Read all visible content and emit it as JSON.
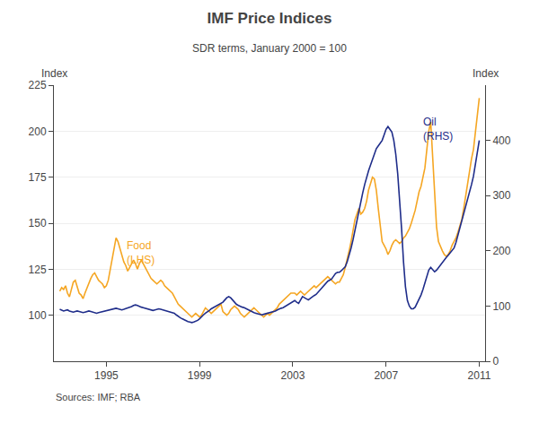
{
  "chart_data": {
    "type": "line",
    "title": "IMF Price Indices",
    "subtitle": "SDR terms, January 2000 = 100",
    "ylabel": "Index",
    "y2label": "Index",
    "source": "Sources: IMF; RBA",
    "grid": true,
    "xlim": [
      1992.75,
      2011.25
    ],
    "xticks": [
      1995,
      1999,
      2003,
      2007,
      2011
    ],
    "ylim": [
      75,
      225
    ],
    "yticks": [
      100,
      125,
      150,
      175,
      200,
      225
    ],
    "y2lim": [
      0,
      500
    ],
    "y2ticks": [
      0,
      100,
      200,
      300,
      400
    ],
    "annotations": [
      {
        "text": "Food\n(LHS)",
        "x": 1995.8,
        "y": 134,
        "color": "#F5A623"
      },
      {
        "text": "Oil\n(RHS)",
        "x": 2008.5,
        "y": 420,
        "axis": "y2",
        "color": "#1F2D8A"
      }
    ],
    "x": [
      1993.0,
      1993.083,
      1993.167,
      1993.25,
      1993.333,
      1993.417,
      1993.5,
      1993.583,
      1993.667,
      1993.75,
      1993.833,
      1993.917,
      1994.0,
      1994.083,
      1994.167,
      1994.25,
      1994.333,
      1994.417,
      1994.5,
      1994.583,
      1994.667,
      1994.75,
      1994.833,
      1994.917,
      1995.0,
      1995.083,
      1995.167,
      1995.25,
      1995.333,
      1995.417,
      1995.5,
      1995.583,
      1995.667,
      1995.75,
      1995.833,
      1995.917,
      1996.0,
      1996.083,
      1996.167,
      1996.25,
      1996.333,
      1996.417,
      1996.5,
      1996.583,
      1996.667,
      1996.75,
      1996.833,
      1996.917,
      1997.0,
      1997.083,
      1997.167,
      1997.25,
      1997.333,
      1997.417,
      1997.5,
      1997.583,
      1997.667,
      1997.75,
      1997.833,
      1997.917,
      1998.0,
      1998.083,
      1998.167,
      1998.25,
      1998.333,
      1998.417,
      1998.5,
      1998.583,
      1998.667,
      1998.75,
      1998.833,
      1998.917,
      1999.0,
      1999.083,
      1999.167,
      1999.25,
      1999.333,
      1999.417,
      1999.5,
      1999.583,
      1999.667,
      1999.75,
      1999.833,
      1999.917,
      2000.0,
      2000.083,
      2000.167,
      2000.25,
      2000.333,
      2000.417,
      2000.5,
      2000.583,
      2000.667,
      2000.75,
      2000.833,
      2000.917,
      2001.0,
      2001.083,
      2001.167,
      2001.25,
      2001.333,
      2001.417,
      2001.5,
      2001.583,
      2001.667,
      2001.75,
      2001.833,
      2001.917,
      2002.0,
      2002.083,
      2002.167,
      2002.25,
      2002.333,
      2002.417,
      2002.5,
      2002.583,
      2002.667,
      2002.75,
      2002.833,
      2002.917,
      2003.0,
      2003.083,
      2003.167,
      2003.25,
      2003.333,
      2003.417,
      2003.5,
      2003.583,
      2003.667,
      2003.75,
      2003.833,
      2003.917,
      2004.0,
      2004.083,
      2004.167,
      2004.25,
      2004.333,
      2004.417,
      2004.5,
      2004.583,
      2004.667,
      2004.75,
      2004.833,
      2004.917,
      2005.0,
      2005.083,
      2005.167,
      2005.25,
      2005.333,
      2005.417,
      2005.5,
      2005.583,
      2005.667,
      2005.75,
      2005.833,
      2005.917,
      2006.0,
      2006.083,
      2006.167,
      2006.25,
      2006.333,
      2006.417,
      2006.5,
      2006.583,
      2006.667,
      2006.75,
      2006.833,
      2006.917,
      2007.0,
      2007.083,
      2007.167,
      2007.25,
      2007.333,
      2007.417,
      2007.5,
      2007.583,
      2007.667,
      2007.75,
      2007.833,
      2007.917,
      2008.0,
      2008.083,
      2008.167,
      2008.25,
      2008.333,
      2008.417,
      2008.5,
      2008.583,
      2008.667,
      2008.75,
      2008.833,
      2008.917,
      2009.0,
      2009.083,
      2009.167,
      2009.25,
      2009.333,
      2009.417,
      2009.5,
      2009.583,
      2009.667,
      2009.75,
      2009.833,
      2009.917,
      2010.0,
      2010.083,
      2010.167,
      2010.25,
      2010.333,
      2010.417,
      2010.5,
      2010.583,
      2010.667,
      2010.75,
      2010.833,
      2010.917,
      2011.0
    ],
    "series": [
      {
        "color": "#1F2D8A",
        "axis": "y2",
        "values": [
          94,
          92,
          91,
          92,
          93,
          91,
          90,
          89,
          90,
          91,
          90,
          89,
          88,
          89,
          90,
          91,
          90,
          89,
          88,
          87,
          88,
          89,
          90,
          91,
          91,
          92,
          93,
          94,
          95,
          96,
          95,
          94,
          93,
          94,
          95,
          96,
          97,
          99,
          101,
          102,
          101,
          99,
          98,
          97,
          96,
          95,
          94,
          93,
          92,
          93,
          94,
          95,
          94,
          93,
          92,
          91,
          90,
          89,
          88,
          87,
          84,
          81,
          79,
          77,
          75,
          73,
          72,
          71,
          70,
          71,
          72,
          74,
          77,
          81,
          84,
          87,
          89,
          92,
          95,
          97,
          99,
          101,
          103,
          105,
          107,
          111,
          115,
          117,
          115,
          111,
          107,
          103,
          101,
          99,
          98,
          97,
          95,
          93,
          91,
          89,
          88,
          87,
          86,
          85,
          84,
          85,
          86,
          87,
          87,
          88,
          89,
          91,
          93,
          95,
          96,
          97,
          99,
          101,
          103,
          105,
          108,
          110,
          107,
          105,
          111,
          117,
          115,
          113,
          111,
          114,
          117,
          119,
          121,
          125,
          129,
          134,
          137,
          141,
          145,
          147,
          149,
          154,
          159,
          161,
          161,
          164,
          167,
          171,
          180,
          192,
          205,
          220,
          238,
          255,
          272,
          290,
          305,
          320,
          335,
          345,
          355,
          365,
          375,
          385,
          390,
          395,
          400,
          410,
          420,
          425,
          420,
          415,
          400,
          375,
          340,
          295,
          240,
          180,
          135,
          110,
          100,
          95,
          95,
          98,
          105,
          112,
          120,
          130,
          142,
          155,
          165,
          170,
          165,
          162,
          165,
          170,
          175,
          180,
          185,
          188,
          192,
          196,
          200,
          205,
          215,
          228,
          240,
          252,
          265,
          278,
          290,
          305,
          320,
          335,
          355,
          375,
          400
        ]
      },
      {
        "color": "#F5A623",
        "values": [
          113,
          115,
          114,
          116,
          112,
          110,
          114,
          118,
          119,
          116,
          112,
          111,
          109,
          112,
          115,
          118,
          120,
          122,
          123,
          121,
          119,
          118,
          117,
          115,
          116,
          119,
          125,
          132,
          138,
          142,
          140,
          136,
          132,
          129,
          127,
          124,
          126,
          128,
          130,
          128,
          125,
          128,
          130,
          128,
          126,
          124,
          122,
          120,
          119,
          118,
          117,
          118,
          119,
          118,
          116,
          115,
          114,
          113,
          112,
          110,
          108,
          106,
          105,
          104,
          103,
          102,
          101,
          100,
          99,
          100,
          101,
          100,
          99,
          100,
          102,
          104,
          103,
          102,
          101,
          102,
          103,
          104,
          105,
          106,
          102,
          101,
          100,
          101,
          103,
          104,
          105,
          104,
          103,
          101,
          100,
          99,
          100,
          101,
          102,
          103,
          104,
          103,
          102,
          101,
          100,
          99,
          100,
          101,
          100,
          101,
          102,
          103,
          104,
          106,
          107,
          108,
          109,
          110,
          111,
          112,
          112,
          112,
          111,
          112,
          113,
          112,
          111,
          112,
          113,
          114,
          115,
          116,
          115,
          116,
          117,
          118,
          119,
          120,
          121,
          120,
          119,
          118,
          117,
          118,
          118,
          120,
          122,
          126,
          130,
          135,
          140,
          146,
          152,
          155,
          158,
          155,
          156,
          158,
          162,
          168,
          172,
          175,
          174,
          168,
          158,
          148,
          140,
          138,
          136,
          133,
          135,
          138,
          140,
          141,
          140,
          139,
          140,
          142,
          143,
          145,
          147,
          150,
          153,
          157,
          162,
          167,
          170,
          175,
          180,
          190,
          200,
          205,
          185,
          165,
          148,
          140,
          137,
          135,
          133,
          132,
          133,
          135,
          138,
          140,
          142,
          145,
          148,
          152,
          158,
          165,
          172,
          178,
          185,
          190,
          200,
          210,
          218
        ]
      }
    ]
  }
}
